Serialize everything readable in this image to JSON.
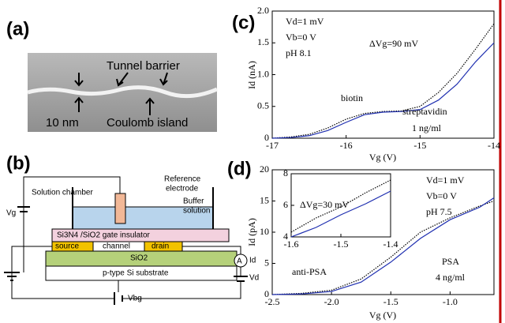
{
  "panels": [
    "(a)",
    "(b)",
    "(c)",
    "(d)"
  ],
  "sem": {
    "tunnel_barrier": "Tunnel barrier",
    "scale": "10 nm",
    "coulomb_island": "Coulomb island"
  },
  "device": {
    "solution_chamber": "Solution chamber",
    "reference_electrode": [
      "Reference",
      "electrode"
    ],
    "buffer_solution": [
      "Buffer",
      "solution"
    ],
    "gate_insulator": "Si3N4 /SiO2 gate insulator",
    "source": "source",
    "channel": "channel",
    "drain": "drain",
    "oxide": "SiO2",
    "substrate": "p-type Si substrate",
    "vg": "Vg",
    "id": "Id",
    "vd": "Vd",
    "vbg": "Vbg",
    "ammeter": "A"
  },
  "chart_data": [
    {
      "type": "line",
      "xlabel": "Vg (V)",
      "ylabel": "Id (nA)",
      "annotations": [
        "Vd=1 mV",
        "Vb=0 V",
        "pH 8.1",
        "ΔVg=90 mV",
        "1 ng/ml"
      ],
      "x": [
        -17,
        -16.75,
        -16.5,
        -16.25,
        -16,
        -15.75,
        -15.5,
        -15.25,
        -15,
        -14.75,
        -14.5,
        -14.25,
        -14
      ],
      "series": [
        {
          "name": "biotin",
          "color": "#000000",
          "dash": "dotted",
          "values": [
            0,
            0.02,
            0.06,
            0.16,
            0.3,
            0.39,
            0.42,
            0.43,
            0.5,
            0.72,
            1.02,
            1.4,
            1.8
          ]
        },
        {
          "name": "streptavidin",
          "color": "#1f2fb0",
          "dash": "solid",
          "values": [
            0,
            0.01,
            0.04,
            0.12,
            0.25,
            0.37,
            0.41,
            0.42,
            0.45,
            0.6,
            0.85,
            1.2,
            1.5
          ]
        }
      ],
      "xlim": [
        -17,
        -14
      ],
      "xticks": [
        -17,
        -16,
        -15,
        -14
      ],
      "ylim": [
        0,
        2
      ],
      "yticks": [
        0,
        0.5,
        {
          "value": 1,
          "label": "1.0"
        },
        1.5,
        {
          "value": 2,
          "label": "2.0"
        }
      ]
    },
    {
      "type": "line",
      "xlabel": "Vg (V)",
      "ylabel": "Id (pA)",
      "annotations": [
        "Vd=1 mV",
        "Vb=0 V",
        "pH 7.5",
        "4 ng/ml"
      ],
      "x": [
        -2.5,
        -2.25,
        -2,
        -1.75,
        -1.5,
        -1.25,
        -1,
        -0.75,
        -0.63
      ],
      "series": [
        {
          "name": "anti-PSA",
          "color": "#000000",
          "dash": "dotted",
          "values": [
            0,
            0.2,
            0.7,
            2.5,
            6,
            10,
            12.3,
            14.2,
            15
          ]
        },
        {
          "name": "PSA",
          "color": "#1f2fb0",
          "dash": "solid",
          "values": [
            0,
            0.1,
            0.5,
            2,
            5.2,
            9,
            12,
            14,
            15.5
          ]
        }
      ],
      "xlim": [
        -2.5,
        -0.63
      ],
      "xticks": [
        -2.5,
        {
          "value": -2,
          "label": "-2.0"
        },
        -1.5,
        {
          "value": -1,
          "label": "-1.0"
        }
      ],
      "ylim": [
        0,
        20
      ],
      "yticks": [
        0,
        5,
        10,
        15,
        20
      ]
    },
    {
      "type": "line",
      "annotations": [
        "ΔVg=30 mV"
      ],
      "x": [
        -1.6,
        -1.55,
        -1.5,
        -1.45,
        -1.4
      ],
      "series": [
        {
          "color": "#000000",
          "dash": "dotted",
          "values": [
            4.3,
            5.2,
            5.9,
            6.8,
            7.6
          ]
        },
        {
          "color": "#1f2fb0",
          "dash": "solid",
          "values": [
            4.0,
            4.6,
            5.4,
            6.1,
            6.9
          ]
        }
      ],
      "xlim": [
        -1.6,
        -1.4
      ],
      "xticks": [
        -1.6,
        -1.5,
        -1.4
      ],
      "ylim": [
        4,
        8
      ],
      "yticks": [
        4,
        6,
        8
      ]
    }
  ]
}
